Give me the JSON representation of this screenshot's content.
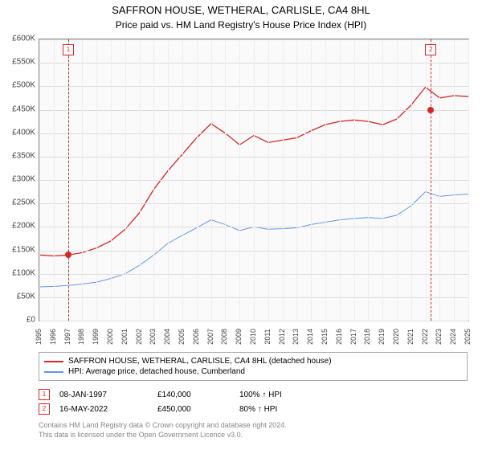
{
  "title": "SAFFRON HOUSE, WETHERAL, CARLISLE, CA4 8HL",
  "subtitle": "Price paid vs. HM Land Registry's House Price Index (HPI)",
  "chart": {
    "type": "line",
    "background_color": "#fafafa",
    "grid_color": "#dddddd",
    "border_color": "#888888",
    "yaxis": {
      "prefix": "£",
      "min": 0,
      "max": 600000,
      "step": 50000,
      "ticks": [
        "£0",
        "£50K",
        "£100K",
        "£150K",
        "£200K",
        "£250K",
        "£300K",
        "£350K",
        "£400K",
        "£450K",
        "£500K",
        "£550K",
        "£600K"
      ],
      "tick_fontsize": 10,
      "tick_color": "#444444"
    },
    "xaxis": {
      "min": 1995,
      "max": 2025,
      "years": [
        1995,
        1996,
        1997,
        1998,
        1999,
        2000,
        2001,
        2002,
        2003,
        2004,
        2005,
        2006,
        2007,
        2008,
        2009,
        2010,
        2011,
        2012,
        2013,
        2014,
        2015,
        2016,
        2017,
        2018,
        2019,
        2020,
        2021,
        2022,
        2023,
        2024,
        2025
      ],
      "tick_fontsize": 9,
      "tick_color": "#444444"
    },
    "series": [
      {
        "name": "SAFFRON HOUSE, WETHERAL, CARLISLE, CA4 8HL (detached house)",
        "color": "#d62728",
        "line_width": 1.3,
        "data": [
          [
            1995,
            140000
          ],
          [
            1996,
            138000
          ],
          [
            1997,
            140000
          ],
          [
            1998,
            145000
          ],
          [
            1999,
            155000
          ],
          [
            2000,
            170000
          ],
          [
            2001,
            195000
          ],
          [
            2002,
            230000
          ],
          [
            2003,
            280000
          ],
          [
            2004,
            320000
          ],
          [
            2005,
            355000
          ],
          [
            2006,
            390000
          ],
          [
            2007,
            420000
          ],
          [
            2008,
            400000
          ],
          [
            2009,
            375000
          ],
          [
            2010,
            395000
          ],
          [
            2011,
            380000
          ],
          [
            2012,
            385000
          ],
          [
            2013,
            390000
          ],
          [
            2014,
            405000
          ],
          [
            2015,
            418000
          ],
          [
            2016,
            425000
          ],
          [
            2017,
            428000
          ],
          [
            2018,
            425000
          ],
          [
            2019,
            418000
          ],
          [
            2020,
            430000
          ],
          [
            2021,
            460000
          ],
          [
            2022,
            498000
          ],
          [
            2023,
            475000
          ],
          [
            2024,
            480000
          ],
          [
            2025,
            478000
          ]
        ]
      },
      {
        "name": "HPI: Average price, detached house, Cumberland",
        "color": "#6495ed",
        "line_width": 1.0,
        "data": [
          [
            1995,
            72000
          ],
          [
            1996,
            73000
          ],
          [
            1997,
            75000
          ],
          [
            1998,
            78000
          ],
          [
            1999,
            82000
          ],
          [
            2000,
            90000
          ],
          [
            2001,
            100000
          ],
          [
            2002,
            118000
          ],
          [
            2003,
            140000
          ],
          [
            2004,
            165000
          ],
          [
            2005,
            182000
          ],
          [
            2006,
            198000
          ],
          [
            2007,
            215000
          ],
          [
            2008,
            205000
          ],
          [
            2009,
            192000
          ],
          [
            2010,
            200000
          ],
          [
            2011,
            195000
          ],
          [
            2012,
            196000
          ],
          [
            2013,
            198000
          ],
          [
            2014,
            205000
          ],
          [
            2015,
            210000
          ],
          [
            2016,
            215000
          ],
          [
            2017,
            218000
          ],
          [
            2018,
            220000
          ],
          [
            2019,
            218000
          ],
          [
            2020,
            225000
          ],
          [
            2021,
            245000
          ],
          [
            2022,
            275000
          ],
          [
            2023,
            265000
          ],
          [
            2024,
            268000
          ],
          [
            2025,
            270000
          ]
        ]
      }
    ],
    "events": [
      {
        "num": "1",
        "year": 1997.02,
        "price": 140000,
        "date_label": "08-JAN-1997",
        "price_label": "£140,000",
        "pct_label": "100% ↑ HPI",
        "color": "#d62728"
      },
      {
        "num": "2",
        "year": 2022.37,
        "price": 450000,
        "date_label": "16-MAY-2022",
        "price_label": "£450,000",
        "pct_label": "80% ↑ HPI",
        "color": "#d62728"
      }
    ]
  },
  "legend": {
    "items": [
      {
        "color": "#d62728",
        "label": "SAFFRON HOUSE, WETHERAL, CARLISLE, CA4 8HL (detached house)"
      },
      {
        "color": "#6495ed",
        "label": "HPI: Average price, detached house, Cumberland"
      }
    ]
  },
  "footer": {
    "line1": "Contains HM Land Registry data © Crown copyright and database right 2024.",
    "line2": "This data is licensed under the Open Government Licence v3.0."
  }
}
